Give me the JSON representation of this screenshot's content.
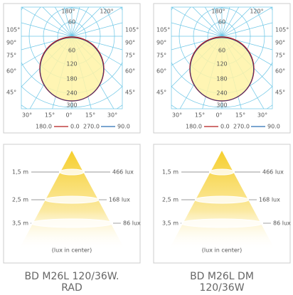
{
  "panels": [
    {
      "polar": {
        "angle_labels_top": [
          "180°",
          "120°"
        ],
        "angle_labels_left": [
          "105°",
          "90°",
          "75°",
          "60°",
          "45°"
        ],
        "angle_labels_right": [
          "105°",
          "90°",
          "75°",
          "60°",
          "45°"
        ],
        "angle_labels_bottom": [
          "30°",
          "15°",
          "0°",
          "15°",
          "30°"
        ],
        "ring_labels": [
          "60",
          "60",
          "120",
          "180",
          "240",
          "300"
        ],
        "legend": [
          "180.0",
          "0.0",
          "270.0",
          "90.0"
        ]
      },
      "illuminance": {
        "rows": [
          {
            "distance": "1,5 m",
            "lux": "466 lux"
          },
          {
            "distance": "2,5 m",
            "lux": "168 lux"
          },
          {
            "distance": "3,5 m",
            "lux": "86 lux"
          }
        ],
        "note": "(lux in center)"
      },
      "caption": [
        "BD M26L 120/36W.",
        "RAD"
      ]
    },
    {
      "polar": {
        "angle_labels_top": [
          "180°",
          "120°"
        ],
        "angle_labels_left": [
          "105°",
          "90°",
          "75°",
          "60°",
          "45°"
        ],
        "angle_labels_right": [
          "105°",
          "90°",
          "75°",
          "60°",
          "45°"
        ],
        "angle_labels_bottom": [
          "30°",
          "15°",
          "0°",
          "15°",
          "30°"
        ],
        "ring_labels": [
          "60",
          "60",
          "120",
          "180",
          "240",
          "300"
        ],
        "legend": [
          "180.0",
          "0.0",
          "270.0",
          "90.0"
        ]
      },
      "illuminance": {
        "rows": [
          {
            "distance": "1,5 m",
            "lux": "466 lux"
          },
          {
            "distance": "2,5 m",
            "lux": "168 lux"
          },
          {
            "distance": "3,5 m",
            "lux": "86 lux"
          }
        ],
        "note": "(lux in center)"
      },
      "caption": [
        "BD M26L DM",
        "120/36W"
      ]
    }
  ]
}
